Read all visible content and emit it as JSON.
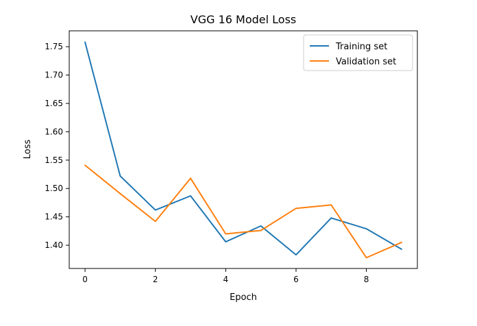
{
  "chart_data": {
    "type": "line",
    "title": "VGG 16 Model Loss",
    "xlabel": "Epoch",
    "ylabel": "Loss",
    "x": [
      0,
      1,
      2,
      3,
      4,
      5,
      6,
      7,
      8,
      9
    ],
    "xlim": [
      -0.45,
      9.45
    ],
    "ylim": [
      1.359,
      1.778
    ],
    "xticks": [
      0,
      2,
      4,
      6,
      8
    ],
    "xtick_labels": [
      "0",
      "2",
      "4",
      "6",
      "8"
    ],
    "yticks": [
      1.4,
      1.45,
      1.5,
      1.55,
      1.6,
      1.65,
      1.7,
      1.75
    ],
    "ytick_labels": [
      "1.40",
      "1.45",
      "1.50",
      "1.55",
      "1.60",
      "1.65",
      "1.70",
      "1.75"
    ],
    "grid": false,
    "legend_position": "top-right",
    "series": [
      {
        "name": "Training set",
        "color": "#1f77b4",
        "values": [
          1.758,
          1.522,
          1.462,
          1.487,
          1.406,
          1.434,
          1.383,
          1.448,
          1.429,
          1.393
        ]
      },
      {
        "name": "Validation set",
        "color": "#ff7f0e",
        "values": [
          1.541,
          1.491,
          1.442,
          1.518,
          1.42,
          1.426,
          1.465,
          1.471,
          1.378,
          1.405
        ]
      }
    ]
  }
}
